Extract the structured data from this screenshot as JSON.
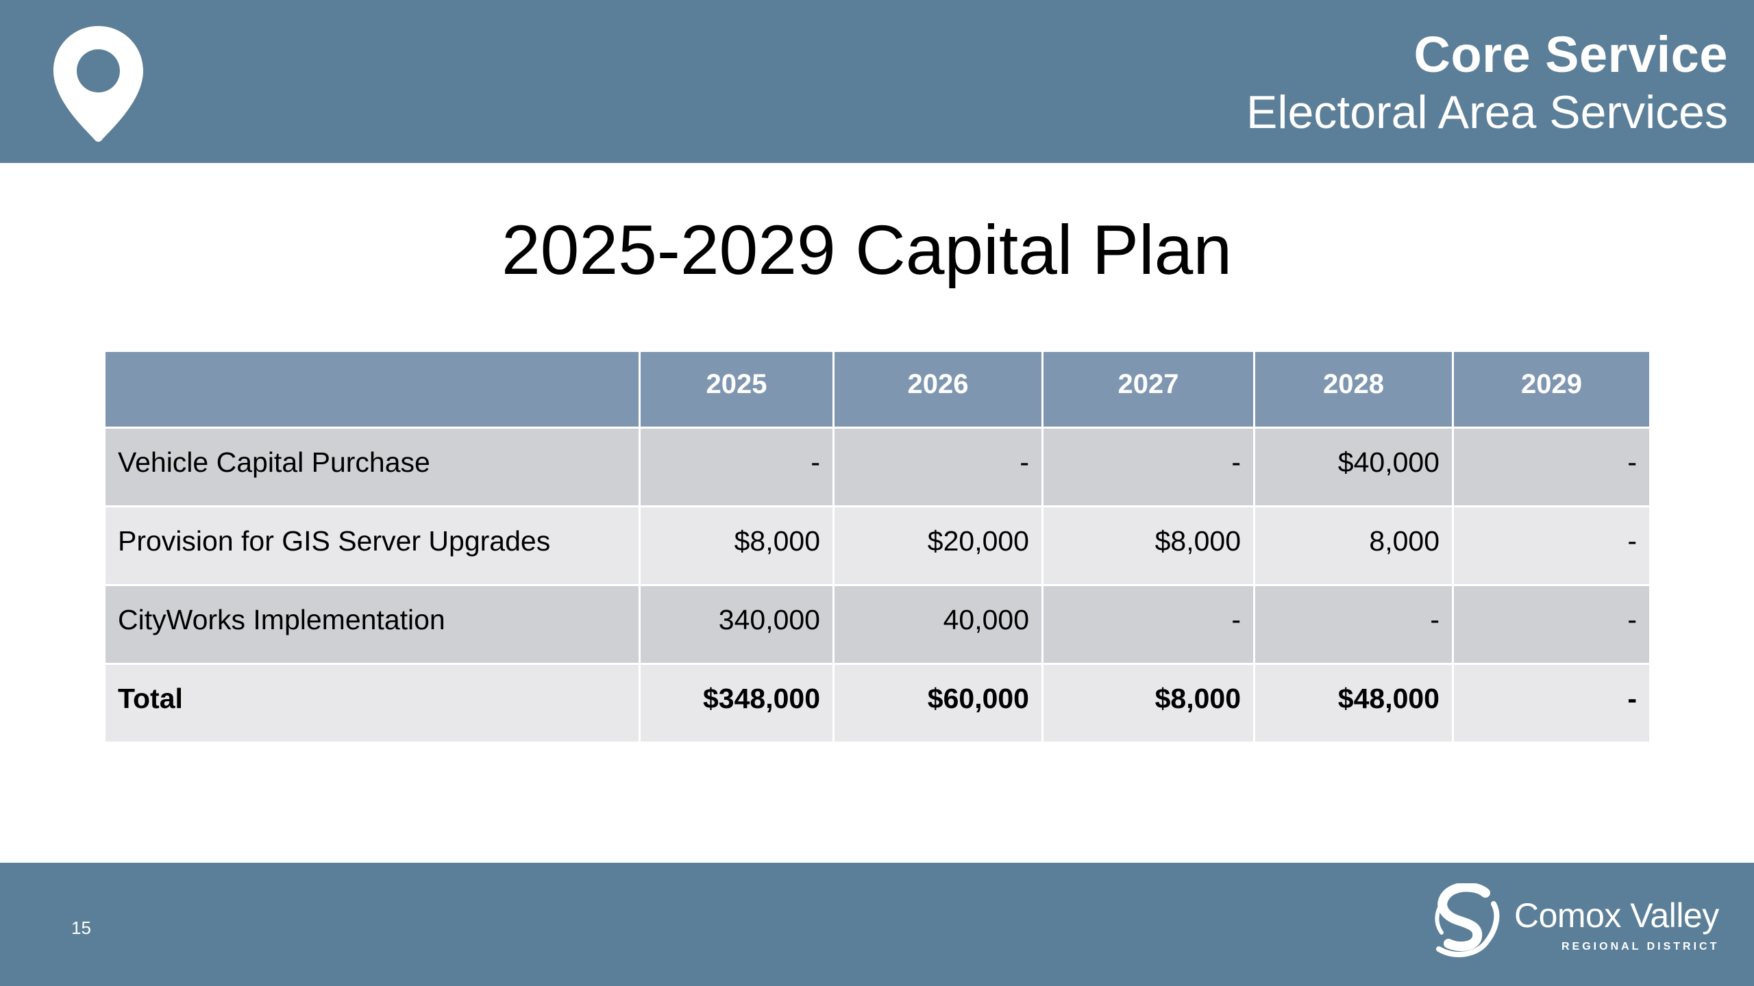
{
  "header": {
    "title": "Core Service",
    "subtitle": "Electoral Area Services",
    "icon": "map-pin-icon",
    "color": "#5b7f98"
  },
  "slide": {
    "title": "2025-2029 Capital Plan"
  },
  "table": {
    "columns": [
      "",
      "2025",
      "2026",
      "2027",
      "2028",
      "2029"
    ],
    "rows": [
      {
        "label": "Vehicle Capital Purchase",
        "values": [
          "-",
          "-",
          "-",
          "$40,000",
          "-"
        ]
      },
      {
        "label": "Provision for GIS Server Upgrades",
        "values": [
          "$8,000",
          "$20,000",
          "$8,000",
          "8,000",
          "-"
        ]
      },
      {
        "label": "CityWorks Implementation",
        "values": [
          "340,000",
          "40,000",
          "-",
          "-",
          "-"
        ]
      },
      {
        "label": "Total",
        "values": [
          "$348,000",
          "$60,000",
          "$8,000",
          "$48,000",
          "-"
        ]
      }
    ],
    "header_color": "#7f96b1",
    "row_colors": [
      "#cfd0d4",
      "#e8e8ea"
    ]
  },
  "footer": {
    "page_number": "15",
    "logo": {
      "name": "Comox Valley",
      "subtitle": "REGIONAL DISTRICT",
      "icon": "crd-logo-icon"
    }
  }
}
